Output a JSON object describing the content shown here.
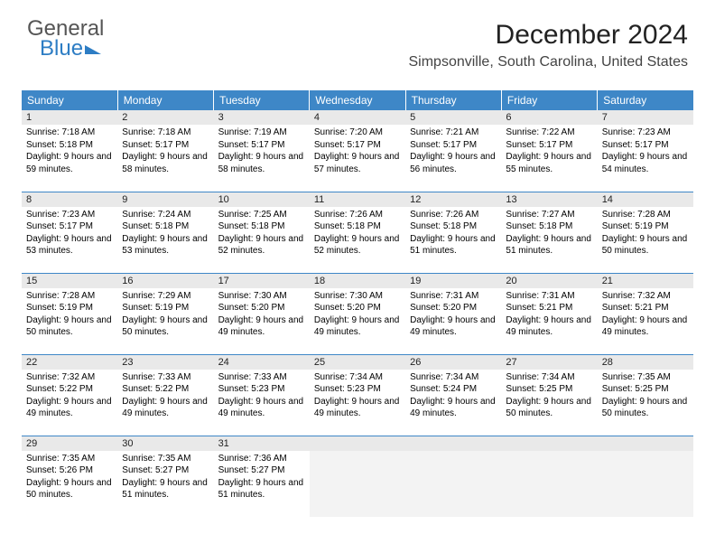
{
  "logo": {
    "line1": "General",
    "line2": "Blue"
  },
  "header": {
    "month": "December 2024",
    "location": "Simpsonville, South Carolina, United States"
  },
  "style": {
    "header_bg": "#3e87c7",
    "header_fg": "#ffffff",
    "daynum_bg": "#e9e9e9",
    "rule_color": "#3e87c7",
    "body_font_size": 10,
    "th_font_size": 12
  },
  "weekdays": [
    "Sunday",
    "Monday",
    "Tuesday",
    "Wednesday",
    "Thursday",
    "Friday",
    "Saturday"
  ],
  "days": [
    {
      "n": "1",
      "sunrise": "7:18 AM",
      "sunset": "5:18 PM",
      "daylight": "9 hours and 59 minutes."
    },
    {
      "n": "2",
      "sunrise": "7:18 AM",
      "sunset": "5:17 PM",
      "daylight": "9 hours and 58 minutes."
    },
    {
      "n": "3",
      "sunrise": "7:19 AM",
      "sunset": "5:17 PM",
      "daylight": "9 hours and 58 minutes."
    },
    {
      "n": "4",
      "sunrise": "7:20 AM",
      "sunset": "5:17 PM",
      "daylight": "9 hours and 57 minutes."
    },
    {
      "n": "5",
      "sunrise": "7:21 AM",
      "sunset": "5:17 PM",
      "daylight": "9 hours and 56 minutes."
    },
    {
      "n": "6",
      "sunrise": "7:22 AM",
      "sunset": "5:17 PM",
      "daylight": "9 hours and 55 minutes."
    },
    {
      "n": "7",
      "sunrise": "7:23 AM",
      "sunset": "5:17 PM",
      "daylight": "9 hours and 54 minutes."
    },
    {
      "n": "8",
      "sunrise": "7:23 AM",
      "sunset": "5:17 PM",
      "daylight": "9 hours and 53 minutes."
    },
    {
      "n": "9",
      "sunrise": "7:24 AM",
      "sunset": "5:18 PM",
      "daylight": "9 hours and 53 minutes."
    },
    {
      "n": "10",
      "sunrise": "7:25 AM",
      "sunset": "5:18 PM",
      "daylight": "9 hours and 52 minutes."
    },
    {
      "n": "11",
      "sunrise": "7:26 AM",
      "sunset": "5:18 PM",
      "daylight": "9 hours and 52 minutes."
    },
    {
      "n": "12",
      "sunrise": "7:26 AM",
      "sunset": "5:18 PM",
      "daylight": "9 hours and 51 minutes."
    },
    {
      "n": "13",
      "sunrise": "7:27 AM",
      "sunset": "5:18 PM",
      "daylight": "9 hours and 51 minutes."
    },
    {
      "n": "14",
      "sunrise": "7:28 AM",
      "sunset": "5:19 PM",
      "daylight": "9 hours and 50 minutes."
    },
    {
      "n": "15",
      "sunrise": "7:28 AM",
      "sunset": "5:19 PM",
      "daylight": "9 hours and 50 minutes."
    },
    {
      "n": "16",
      "sunrise": "7:29 AM",
      "sunset": "5:19 PM",
      "daylight": "9 hours and 50 minutes."
    },
    {
      "n": "17",
      "sunrise": "7:30 AM",
      "sunset": "5:20 PM",
      "daylight": "9 hours and 49 minutes."
    },
    {
      "n": "18",
      "sunrise": "7:30 AM",
      "sunset": "5:20 PM",
      "daylight": "9 hours and 49 minutes."
    },
    {
      "n": "19",
      "sunrise": "7:31 AM",
      "sunset": "5:20 PM",
      "daylight": "9 hours and 49 minutes."
    },
    {
      "n": "20",
      "sunrise": "7:31 AM",
      "sunset": "5:21 PM",
      "daylight": "9 hours and 49 minutes."
    },
    {
      "n": "21",
      "sunrise": "7:32 AM",
      "sunset": "5:21 PM",
      "daylight": "9 hours and 49 minutes."
    },
    {
      "n": "22",
      "sunrise": "7:32 AM",
      "sunset": "5:22 PM",
      "daylight": "9 hours and 49 minutes."
    },
    {
      "n": "23",
      "sunrise": "7:33 AM",
      "sunset": "5:22 PM",
      "daylight": "9 hours and 49 minutes."
    },
    {
      "n": "24",
      "sunrise": "7:33 AM",
      "sunset": "5:23 PM",
      "daylight": "9 hours and 49 minutes."
    },
    {
      "n": "25",
      "sunrise": "7:34 AM",
      "sunset": "5:23 PM",
      "daylight": "9 hours and 49 minutes."
    },
    {
      "n": "26",
      "sunrise": "7:34 AM",
      "sunset": "5:24 PM",
      "daylight": "9 hours and 49 minutes."
    },
    {
      "n": "27",
      "sunrise": "7:34 AM",
      "sunset": "5:25 PM",
      "daylight": "9 hours and 50 minutes."
    },
    {
      "n": "28",
      "sunrise": "7:35 AM",
      "sunset": "5:25 PM",
      "daylight": "9 hours and 50 minutes."
    },
    {
      "n": "29",
      "sunrise": "7:35 AM",
      "sunset": "5:26 PM",
      "daylight": "9 hours and 50 minutes."
    },
    {
      "n": "30",
      "sunrise": "7:35 AM",
      "sunset": "5:27 PM",
      "daylight": "9 hours and 51 minutes."
    },
    {
      "n": "31",
      "sunrise": "7:36 AM",
      "sunset": "5:27 PM",
      "daylight": "9 hours and 51 minutes."
    }
  ],
  "labels": {
    "sunrise": "Sunrise: ",
    "sunset": "Sunset: ",
    "daylight": "Daylight: "
  }
}
